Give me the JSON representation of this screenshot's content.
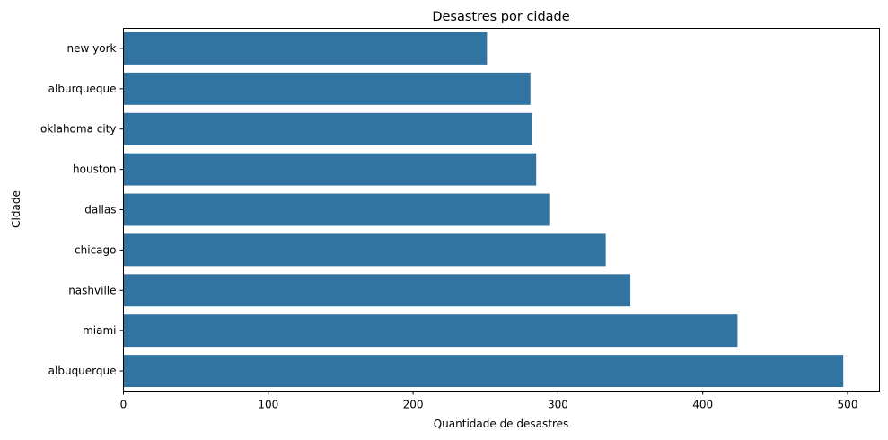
{
  "chart_data": {
    "type": "bar",
    "orientation": "horizontal",
    "title": "Desastres por cidade",
    "xlabel": "Quantidade de desastres",
    "ylabel": "Cidade",
    "categories": [
      "new york",
      "alburqueque",
      "oklahoma city",
      "houston",
      "dallas",
      "chicago",
      "nashville",
      "miami",
      "albuquerque"
    ],
    "values": [
      251,
      281,
      282,
      285,
      294,
      333,
      350,
      424,
      497
    ],
    "xlim": [
      0,
      522
    ],
    "xticks": [
      0,
      100,
      200,
      300,
      400,
      500
    ],
    "bar_color": "#3274a1",
    "grid": false,
    "legend": "none"
  }
}
